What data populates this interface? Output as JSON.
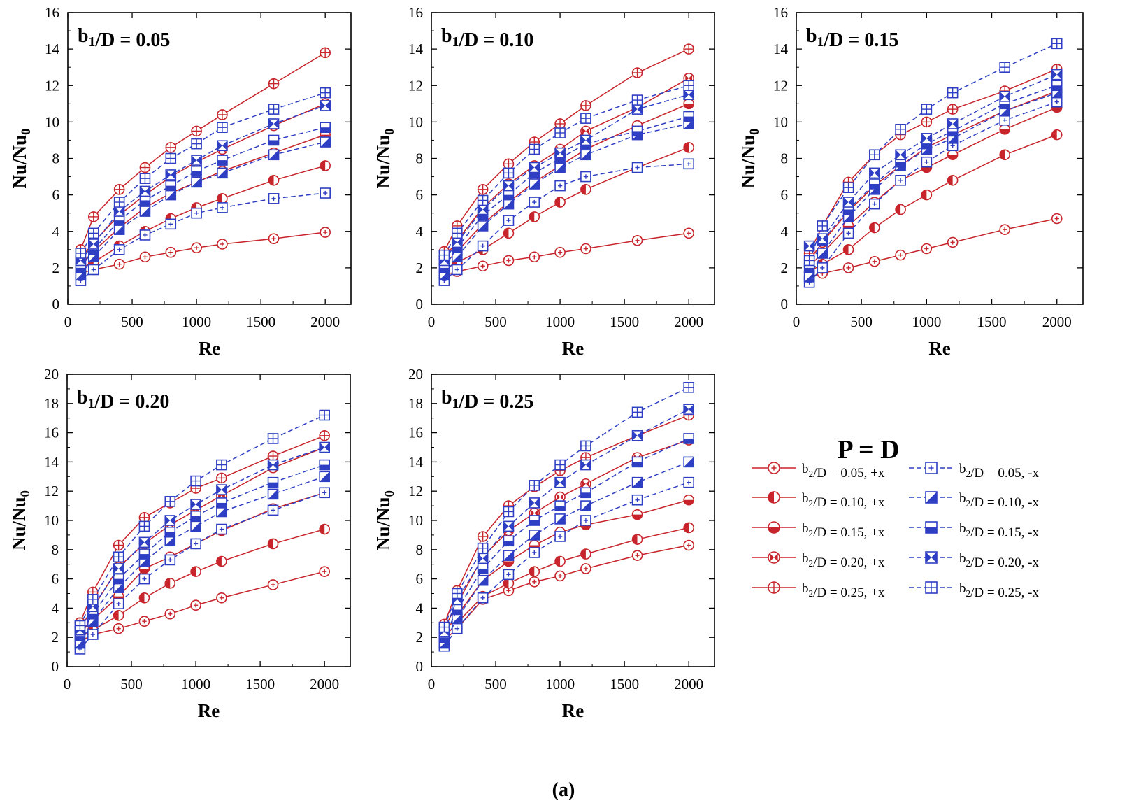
{
  "caption": "(a)",
  "colors": {
    "plus_x": "#c8242b",
    "minus_x": "#2f3fc4",
    "axis": "#000000"
  },
  "legend": {
    "title": "P = D",
    "entries": [
      {
        "key": "p05",
        "label": "b₂/D = 0.05, +x"
      },
      {
        "key": "p10",
        "label": "b₂/D = 0.10, +x"
      },
      {
        "key": "p15",
        "label": "b₂/D = 0.15, +x"
      },
      {
        "key": "p20",
        "label": "b₂/D = 0.20, +x"
      },
      {
        "key": "p25",
        "label": "b₂/D = 0.25, +x"
      },
      {
        "key": "m05",
        "label": "b₂/D = 0.05, -x"
      },
      {
        "key": "m10",
        "label": "b₂/D = 0.10, -x"
      },
      {
        "key": "m15",
        "label": "b₂/D = 0.15, -x"
      },
      {
        "key": "m20",
        "label": "b₂/D = 0.20, -x"
      },
      {
        "key": "m25",
        "label": "b₂/D = 0.25, -x"
      }
    ]
  },
  "chart_data": [
    {
      "type": "line",
      "title": "b₁/D = 0.05",
      "xlabel": "Re",
      "ylabel": "Nu/Nu₀",
      "xlim": [
        0,
        2200
      ],
      "ylim": [
        0,
        16
      ],
      "xticks": [
        0,
        500,
        1000,
        1500,
        2000
      ],
      "yticks": [
        0,
        2,
        4,
        6,
        8,
        10,
        12,
        14,
        16
      ],
      "x": [
        100,
        200,
        400,
        600,
        800,
        1000,
        1200,
        1600,
        2000
      ],
      "series": [
        {
          "key": "p05",
          "values": [
            1.7,
            1.9,
            2.2,
            2.6,
            2.85,
            3.1,
            3.3,
            3.6,
            3.95
          ]
        },
        {
          "key": "p10",
          "values": [
            2.0,
            2.3,
            3.2,
            4.0,
            4.7,
            5.3,
            5.8,
            6.8,
            7.6
          ]
        },
        {
          "key": "p15",
          "values": [
            2.2,
            2.9,
            4.2,
            5.3,
            6.1,
            6.7,
            7.3,
            8.3,
            9.3
          ]
        },
        {
          "key": "p20",
          "values": [
            2.5,
            3.4,
            4.9,
            6.0,
            7.0,
            7.8,
            8.5,
            9.8,
            11.0
          ]
        },
        {
          "key": "p25",
          "values": [
            3.0,
            4.8,
            6.3,
            7.5,
            8.6,
            9.5,
            10.4,
            12.1,
            13.8
          ]
        },
        {
          "key": "m05",
          "values": [
            1.3,
            1.9,
            3.0,
            3.8,
            4.4,
            5.0,
            5.3,
            5.8,
            6.1
          ]
        },
        {
          "key": "m10",
          "values": [
            1.6,
            2.6,
            4.1,
            5.1,
            6.0,
            6.7,
            7.2,
            8.2,
            8.9
          ]
        },
        {
          "key": "m15",
          "values": [
            2.0,
            3.0,
            4.6,
            5.7,
            6.5,
            7.3,
            7.9,
            9.0,
            9.7
          ]
        },
        {
          "key": "m20",
          "values": [
            2.4,
            3.3,
            5.1,
            6.2,
            7.1,
            7.9,
            8.7,
            9.9,
            10.9
          ]
        },
        {
          "key": "m25",
          "values": [
            2.8,
            3.9,
            5.6,
            6.9,
            8.0,
            8.8,
            9.7,
            10.7,
            11.6
          ]
        }
      ]
    },
    {
      "type": "line",
      "title": "b₁/D = 0.10",
      "xlabel": "Re",
      "ylabel": "Nu/Nu₀",
      "xlim": [
        0,
        2200
      ],
      "ylim": [
        0,
        16
      ],
      "xticks": [
        0,
        500,
        1000,
        1500,
        2000
      ],
      "yticks": [
        0,
        2,
        4,
        6,
        8,
        10,
        12,
        14,
        16
      ],
      "x": [
        100,
        200,
        400,
        600,
        800,
        1000,
        1200,
        1600,
        2000
      ],
      "series": [
        {
          "key": "p05",
          "values": [
            1.6,
            1.8,
            2.1,
            2.4,
            2.6,
            2.85,
            3.05,
            3.5,
            3.9
          ]
        },
        {
          "key": "p10",
          "values": [
            1.9,
            2.3,
            3.0,
            3.9,
            4.8,
            5.6,
            6.3,
            7.5,
            8.6
          ]
        },
        {
          "key": "p15",
          "values": [
            2.2,
            2.9,
            4.4,
            5.6,
            6.7,
            7.6,
            8.5,
            9.8,
            11.0
          ]
        },
        {
          "key": "p20",
          "values": [
            2.5,
            3.5,
            5.3,
            6.6,
            7.6,
            8.5,
            9.5,
            10.8,
            12.4
          ]
        },
        {
          "key": "p25",
          "values": [
            2.9,
            4.3,
            6.3,
            7.7,
            8.9,
            9.9,
            10.9,
            12.7,
            14.0
          ]
        },
        {
          "key": "m05",
          "values": [
            1.3,
            1.9,
            3.2,
            4.6,
            5.6,
            6.5,
            7.0,
            7.5,
            7.7
          ]
        },
        {
          "key": "m10",
          "values": [
            1.6,
            2.6,
            4.3,
            5.5,
            6.6,
            7.5,
            8.2,
            9.3,
            9.9
          ]
        },
        {
          "key": "m15",
          "values": [
            2.0,
            3.1,
            4.9,
            6.0,
            7.2,
            8.0,
            8.8,
            9.5,
            10.3
          ]
        },
        {
          "key": "m20",
          "values": [
            2.4,
            3.4,
            5.2,
            6.5,
            7.5,
            8.3,
            9.0,
            10.7,
            11.5
          ]
        },
        {
          "key": "m25",
          "values": [
            2.7,
            3.9,
            5.7,
            7.2,
            8.5,
            9.4,
            10.2,
            11.2,
            12.0
          ]
        }
      ]
    },
    {
      "type": "line",
      "title": "b₁/D = 0.15",
      "xlabel": "Re",
      "ylabel": "Nu/Nu₀",
      "xlim": [
        0,
        2200
      ],
      "ylim": [
        0,
        16
      ],
      "xticks": [
        0,
        500,
        1000,
        1500,
        2000
      ],
      "yticks": [
        0,
        2,
        4,
        6,
        8,
        10,
        12,
        14,
        16
      ],
      "x": [
        100,
        200,
        400,
        600,
        800,
        1000,
        1200,
        1600,
        2000
      ],
      "series": [
        {
          "key": "p05",
          "values": [
            1.5,
            1.7,
            2.0,
            2.35,
            2.7,
            3.05,
            3.4,
            4.1,
            4.7
          ]
        },
        {
          "key": "p10",
          "values": [
            1.8,
            2.2,
            3.0,
            4.2,
            5.2,
            6.0,
            6.8,
            8.2,
            9.3
          ]
        },
        {
          "key": "p15",
          "values": [
            2.1,
            2.8,
            4.3,
            5.6,
            6.8,
            7.5,
            8.2,
            9.6,
            10.8
          ]
        },
        {
          "key": "p20",
          "values": [
            2.4,
            3.4,
            5.1,
            6.5,
            7.6,
            8.6,
            9.3,
            10.6,
            11.7
          ]
        },
        {
          "key": "p25",
          "values": [
            2.8,
            4.3,
            6.7,
            8.2,
            9.3,
            10.0,
            10.7,
            11.7,
            12.9
          ]
        },
        {
          "key": "m05",
          "values": [
            1.2,
            2.0,
            3.9,
            5.5,
            6.8,
            7.8,
            8.7,
            10.1,
            11.1
          ]
        },
        {
          "key": "m10",
          "values": [
            1.5,
            2.8,
            4.8,
            6.3,
            7.6,
            8.5,
            9.1,
            10.6,
            11.6
          ]
        },
        {
          "key": "m15",
          "values": [
            2.0,
            3.5,
            5.2,
            6.6,
            7.8,
            8.8,
            9.5,
            11.0,
            12.0
          ]
        },
        {
          "key": "m20",
          "values": [
            3.2,
            3.6,
            5.6,
            7.2,
            8.2,
            9.1,
            9.9,
            11.4,
            12.6
          ]
        },
        {
          "key": "m25",
          "values": [
            2.4,
            4.3,
            6.4,
            8.2,
            9.6,
            10.7,
            11.6,
            13.0,
            14.3
          ]
        }
      ]
    },
    {
      "type": "line",
      "title": "b₁/D = 0.20",
      "xlabel": "Re",
      "ylabel": "Nu/Nu₀",
      "xlim": [
        0,
        2200
      ],
      "ylim": [
        0,
        20
      ],
      "xticks": [
        0,
        500,
        1000,
        1500,
        2000
      ],
      "yticks": [
        0,
        2,
        4,
        6,
        8,
        10,
        12,
        14,
        16,
        18,
        20
      ],
      "x": [
        100,
        200,
        400,
        600,
        800,
        1000,
        1200,
        1600,
        2000
      ],
      "series": [
        {
          "key": "p05",
          "values": [
            1.7,
            2.2,
            2.6,
            3.1,
            3.6,
            4.2,
            4.7,
            5.6,
            6.5
          ]
        },
        {
          "key": "p10",
          "values": [
            2.0,
            2.5,
            3.5,
            4.7,
            5.7,
            6.5,
            7.2,
            8.4,
            9.4
          ]
        },
        {
          "key": "p15",
          "values": [
            2.3,
            3.2,
            4.8,
            6.7,
            7.5,
            8.4,
            9.3,
            10.8,
            11.9
          ]
        },
        {
          "key": "p20",
          "values": [
            2.6,
            4.0,
            6.8,
            8.4,
            9.7,
            10.7,
            11.7,
            13.6,
            15.0
          ]
        },
        {
          "key": "p25",
          "values": [
            3.0,
            5.1,
            8.3,
            10.2,
            11.2,
            12.2,
            12.9,
            14.4,
            15.8
          ]
        },
        {
          "key": "m05",
          "values": [
            1.2,
            2.2,
            4.3,
            6.0,
            7.3,
            8.4,
            9.4,
            10.7,
            11.9
          ]
        },
        {
          "key": "m10",
          "values": [
            1.6,
            3.1,
            5.4,
            7.2,
            8.6,
            9.6,
            10.6,
            11.8,
            13.0
          ]
        },
        {
          "key": "m15",
          "values": [
            2.1,
            3.6,
            6.0,
            7.7,
            9.2,
            10.3,
            11.2,
            12.6,
            13.8
          ]
        },
        {
          "key": "m20",
          "values": [
            2.5,
            4.1,
            6.7,
            8.5,
            10.0,
            11.1,
            12.1,
            13.8,
            15.0
          ]
        },
        {
          "key": "m25",
          "values": [
            2.8,
            4.6,
            7.5,
            9.6,
            11.3,
            12.7,
            13.8,
            15.6,
            17.2
          ]
        }
      ]
    },
    {
      "type": "line",
      "title": "b₁/D = 0.25",
      "xlabel": "Re",
      "ylabel": "Nu/Nu₀",
      "xlim": [
        0,
        2200
      ],
      "ylim": [
        0,
        20
      ],
      "xticks": [
        0,
        500,
        1000,
        1500,
        2000
      ],
      "yticks": [
        0,
        2,
        4,
        6,
        8,
        10,
        12,
        14,
        16,
        18,
        20
      ],
      "x": [
        100,
        200,
        400,
        600,
        800,
        1000,
        1200,
        1600,
        2000
      ],
      "series": [
        {
          "key": "p05",
          "values": [
            1.8,
            2.6,
            4.6,
            5.2,
            5.8,
            6.2,
            6.7,
            7.6,
            8.3
          ]
        },
        {
          "key": "p10",
          "values": [
            2.0,
            3.0,
            4.8,
            5.7,
            6.5,
            7.2,
            7.7,
            8.7,
            9.5
          ]
        },
        {
          "key": "p15",
          "values": [
            2.3,
            3.5,
            5.9,
            7.2,
            8.3,
            9.2,
            9.7,
            10.4,
            11.4
          ]
        },
        {
          "key": "p20",
          "values": [
            2.6,
            4.3,
            7.5,
            9.3,
            10.5,
            11.6,
            12.5,
            14.3,
            15.5
          ]
        },
        {
          "key": "p25",
          "values": [
            2.9,
            5.2,
            8.9,
            11.0,
            12.3,
            13.4,
            14.3,
            15.8,
            17.2
          ]
        },
        {
          "key": "m05",
          "values": [
            1.4,
            2.6,
            4.7,
            6.3,
            7.8,
            8.9,
            10.0,
            11.4,
            12.6
          ]
        },
        {
          "key": "m10",
          "values": [
            1.6,
            3.3,
            5.9,
            7.6,
            9.0,
            10.1,
            11.0,
            12.6,
            14.0
          ]
        },
        {
          "key": "m15",
          "values": [
            2.0,
            3.9,
            6.7,
            8.6,
            10.0,
            11.0,
            11.9,
            14.0,
            15.6
          ]
        },
        {
          "key": "m20",
          "values": [
            2.4,
            4.6,
            7.4,
            9.6,
            11.2,
            12.6,
            13.8,
            15.8,
            17.6
          ]
        },
        {
          "key": "m25",
          "values": [
            2.7,
            5.0,
            8.1,
            10.6,
            12.4,
            13.8,
            15.1,
            17.4,
            19.1
          ]
        }
      ]
    }
  ]
}
